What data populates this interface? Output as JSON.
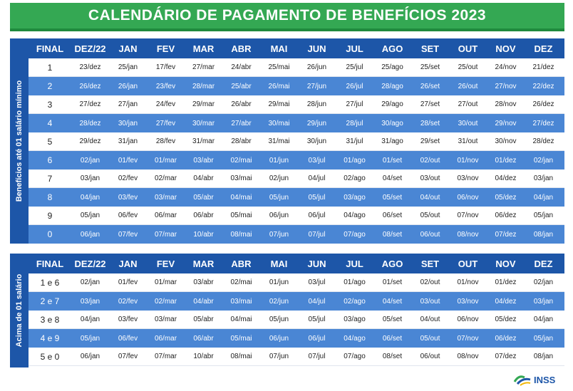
{
  "title": "CALENDÁRIO DE PAGAMENTO DE BENEFÍCIOS 2023",
  "headers": [
    "FINAL",
    "DEZ/22",
    "JAN",
    "FEV",
    "MAR",
    "ABR",
    "MAI",
    "JUN",
    "JUL",
    "AGO",
    "SET",
    "OUT",
    "NOV",
    "DEZ"
  ],
  "table1": {
    "side_label": "Benefícios até 01 salário mínimo",
    "rows": [
      {
        "final": "1",
        "dates": [
          "23/dez",
          "25/jan",
          "17/fev",
          "27/mar",
          "24/abr",
          "25/mai",
          "26/jun",
          "25/jul",
          "25/ago",
          "25/set",
          "25/out",
          "24/nov",
          "21/dez"
        ]
      },
      {
        "final": "2",
        "dates": [
          "26/dez",
          "26/jan",
          "23/fev",
          "28/mar",
          "25/abr",
          "26/mai",
          "27/jun",
          "26/jul",
          "28/ago",
          "26/set",
          "26/out",
          "27/nov",
          "22/dez"
        ]
      },
      {
        "final": "3",
        "dates": [
          "27/dez",
          "27/jan",
          "24/fev",
          "29/mar",
          "26/abr",
          "29/mai",
          "28/jun",
          "27/jul",
          "29/ago",
          "27/set",
          "27/out",
          "28/nov",
          "26/dez"
        ]
      },
      {
        "final": "4",
        "dates": [
          "28/dez",
          "30/jan",
          "27/fev",
          "30/mar",
          "27/abr",
          "30/mai",
          "29/jun",
          "28/jul",
          "30/ago",
          "28/set",
          "30/out",
          "29/nov",
          "27/dez"
        ]
      },
      {
        "final": "5",
        "dates": [
          "29/dez",
          "31/jan",
          "28/fev",
          "31/mar",
          "28/abr",
          "31/mai",
          "30/jun",
          "31/jul",
          "31/ago",
          "29/set",
          "31/out",
          "30/nov",
          "28/dez"
        ]
      },
      {
        "final": "6",
        "dates": [
          "02/jan",
          "01/fev",
          "01/mar",
          "03/abr",
          "02/mai",
          "01/jun",
          "03/jul",
          "01/ago",
          "01/set",
          "02/out",
          "01/nov",
          "01/dez",
          "02/jan"
        ]
      },
      {
        "final": "7",
        "dates": [
          "03/jan",
          "02/fev",
          "02/mar",
          "04/abr",
          "03/mai",
          "02/jun",
          "04/jul",
          "02/ago",
          "04/set",
          "03/out",
          "03/nov",
          "04/dez",
          "03/jan"
        ]
      },
      {
        "final": "8",
        "dates": [
          "04/jan",
          "03/fev",
          "03/mar",
          "05/abr",
          "04/mai",
          "05/jun",
          "05/jul",
          "03/ago",
          "05/set",
          "04/out",
          "06/nov",
          "05/dez",
          "04/jan"
        ]
      },
      {
        "final": "9",
        "dates": [
          "05/jan",
          "06/fev",
          "06/mar",
          "06/abr",
          "05/mai",
          "06/jun",
          "06/jul",
          "04/ago",
          "06/set",
          "05/out",
          "07/nov",
          "06/dez",
          "05/jan"
        ]
      },
      {
        "final": "0",
        "dates": [
          "06/jan",
          "07/fev",
          "07/mar",
          "10/abr",
          "08/mai",
          "07/jun",
          "07/jul",
          "07/ago",
          "08/set",
          "06/out",
          "08/nov",
          "07/dez",
          "08/jan"
        ]
      }
    ]
  },
  "table2": {
    "side_label": "Acima de 01 salário",
    "rows": [
      {
        "final": "1 e 6",
        "dates": [
          "02/jan",
          "01/fev",
          "01/mar",
          "03/abr",
          "02/mai",
          "01/jun",
          "03/jul",
          "01/ago",
          "01/set",
          "02/out",
          "01/nov",
          "01/dez",
          "02/jan"
        ]
      },
      {
        "final": "2 e 7",
        "dates": [
          "03/jan",
          "02/fev",
          "02/mar",
          "04/abr",
          "03/mai",
          "02/jun",
          "04/jul",
          "02/ago",
          "04/set",
          "03/out",
          "03/nov",
          "04/dez",
          "03/jan"
        ]
      },
      {
        "final": "3 e 8",
        "dates": [
          "04/jan",
          "03/fev",
          "03/mar",
          "05/abr",
          "04/mai",
          "05/jun",
          "05/jul",
          "03/ago",
          "05/set",
          "04/out",
          "06/nov",
          "05/dez",
          "04/jan"
        ]
      },
      {
        "final": "4 e 9",
        "dates": [
          "05/jan",
          "06/fev",
          "06/mar",
          "06/abr",
          "05/mai",
          "06/jun",
          "06/jul",
          "04/ago",
          "06/set",
          "05/out",
          "07/nov",
          "06/dez",
          "05/jan"
        ]
      },
      {
        "final": "5 e 0",
        "dates": [
          "06/jan",
          "07/fev",
          "07/mar",
          "10/abr",
          "08/mai",
          "07/jun",
          "07/jul",
          "07/ago",
          "08/set",
          "06/out",
          "08/nov",
          "07/dez",
          "08/jan"
        ]
      }
    ]
  },
  "logo_text": "INSS",
  "colors": {
    "green": "#34a853",
    "blue_dark": "#1d56a8",
    "blue_light": "#4a86d4"
  }
}
